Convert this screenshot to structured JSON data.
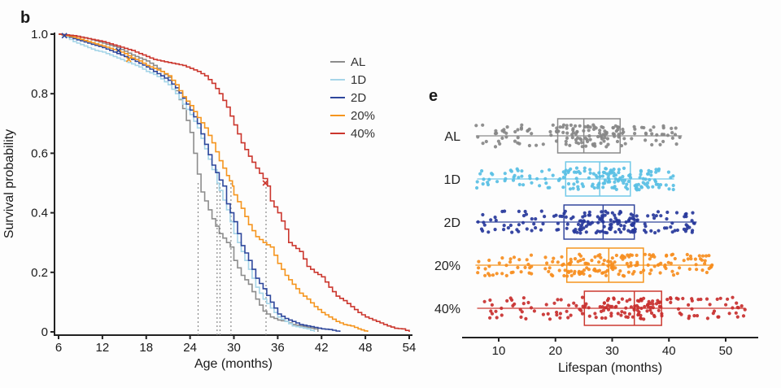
{
  "figure": {
    "background": "#fdfdfd",
    "axis_color": "#222222",
    "median_dash_color": "#8a8a8a"
  },
  "chart_data": [
    {
      "id": "survival-curves",
      "type": "line",
      "step": true,
      "panel_label": "b",
      "xlabel": "Age (months)",
      "ylabel": "Survival probability",
      "xlim": [
        6,
        54
      ],
      "xticks": [
        6,
        12,
        18,
        24,
        30,
        36,
        42,
        48,
        54
      ],
      "ylim": [
        0,
        1
      ],
      "yticks": [
        {
          "v": 1.0,
          "label": "1.0"
        },
        {
          "v": 0.8,
          "label": "0.8"
        },
        {
          "v": 0.6,
          "label": "0.6"
        },
        {
          "v": 0.4,
          "label": "0.4"
        },
        {
          "v": 0.2,
          "label": "0.2"
        },
        {
          "v": 0.0,
          "label": "0"
        }
      ],
      "grid": false,
      "legend_position": "upper-right-inside",
      "legend": [
        "AL",
        "1D",
        "2D",
        "20%",
        "40%"
      ],
      "median_survival_months": {
        "AL": 25.1,
        "1D": 27.7,
        "2D": 28.1,
        "20%": 29.6,
        "40%": 34.4
      },
      "censor_marks": [
        {
          "series": "2D",
          "age": 6.8,
          "p": 1.0
        },
        {
          "series": "2D",
          "age": 14.2,
          "p": 0.945
        },
        {
          "series": "20%",
          "age": 15.6,
          "p": 0.915
        },
        {
          "series": "40%",
          "age": 34.3,
          "p": 0.5
        }
      ],
      "series": [
        {
          "name": "AL",
          "color": "#8c8c8c",
          "points": [
            [
              6,
              1.0
            ],
            [
              8,
              0.995
            ],
            [
              10,
              0.985
            ],
            [
              12,
              0.97
            ],
            [
              14,
              0.955
            ],
            [
              16,
              0.93
            ],
            [
              17,
              0.92
            ],
            [
              18,
              0.91
            ],
            [
              19,
              0.895
            ],
            [
              20,
              0.875
            ],
            [
              21,
              0.855
            ],
            [
              22,
              0.81
            ],
            [
              23,
              0.75
            ],
            [
              24,
              0.67
            ],
            [
              25,
              0.53
            ],
            [
              25.5,
              0.47
            ],
            [
              26,
              0.44
            ],
            [
              27,
              0.38
            ],
            [
              28,
              0.33
            ],
            [
              29,
              0.3
            ],
            [
              29.5,
              0.285
            ],
            [
              30,
              0.24
            ],
            [
              31,
              0.19
            ],
            [
              32,
              0.16
            ],
            [
              33,
              0.11
            ],
            [
              34,
              0.07
            ],
            [
              35,
              0.05
            ],
            [
              36,
              0.04
            ],
            [
              37,
              0.035
            ],
            [
              38,
              0.025
            ],
            [
              39,
              0.02
            ],
            [
              40,
              0.015
            ],
            [
              41,
              0.01
            ],
            [
              41.5,
              0
            ]
          ]
        },
        {
          "name": "1D",
          "color": "#a6d5e8",
          "points": [
            [
              6,
              1.0
            ],
            [
              7,
              0.99
            ],
            [
              8,
              0.975
            ],
            [
              9,
              0.965
            ],
            [
              10,
              0.955
            ],
            [
              11,
              0.945
            ],
            [
              12,
              0.94
            ],
            [
              13,
              0.93
            ],
            [
              14,
              0.92
            ],
            [
              15,
              0.91
            ],
            [
              16,
              0.9
            ],
            [
              17,
              0.89
            ],
            [
              18,
              0.875
            ],
            [
              19,
              0.865
            ],
            [
              20,
              0.85
            ],
            [
              21,
              0.83
            ],
            [
              22,
              0.8
            ],
            [
              23,
              0.765
            ],
            [
              24,
              0.73
            ],
            [
              25,
              0.685
            ],
            [
              26,
              0.615
            ],
            [
              27,
              0.545
            ],
            [
              27.7,
              0.5
            ],
            [
              28,
              0.475
            ],
            [
              29,
              0.41
            ],
            [
              30,
              0.33
            ],
            [
              31,
              0.27
            ],
            [
              32,
              0.21
            ],
            [
              33,
              0.15
            ],
            [
              34,
              0.11
            ],
            [
              35,
              0.08
            ],
            [
              36,
              0.05
            ],
            [
              37,
              0.035
            ],
            [
              38,
              0.02
            ],
            [
              39,
              0.015
            ],
            [
              40,
              0.01
            ],
            [
              41,
              0
            ]
          ]
        },
        {
          "name": "2D",
          "color": "#2e479c",
          "points": [
            [
              6,
              1.0
            ],
            [
              7,
              0.995
            ],
            [
              8,
              0.985
            ],
            [
              10,
              0.97
            ],
            [
              12,
              0.955
            ],
            [
              14,
              0.935
            ],
            [
              16,
              0.915
            ],
            [
              18,
              0.89
            ],
            [
              20,
              0.86
            ],
            [
              21,
              0.845
            ],
            [
              22,
              0.82
            ],
            [
              23,
              0.785
            ],
            [
              24,
              0.745
            ],
            [
              25,
              0.7
            ],
            [
              26,
              0.63
            ],
            [
              27,
              0.56
            ],
            [
              28,
              0.51
            ],
            [
              28.5,
              0.49
            ],
            [
              29,
              0.43
            ],
            [
              30,
              0.37
            ],
            [
              31,
              0.29
            ],
            [
              32,
              0.24
            ],
            [
              33,
              0.18
            ],
            [
              34,
              0.145
            ],
            [
              35,
              0.1
            ],
            [
              36,
              0.06
            ],
            [
              37,
              0.045
            ],
            [
              38,
              0.035
            ],
            [
              39,
              0.025
            ],
            [
              40,
              0.02
            ],
            [
              41,
              0.015
            ],
            [
              42,
              0.01
            ],
            [
              43,
              0.008
            ],
            [
              44.5,
              0
            ]
          ]
        },
        {
          "name": "20%",
          "color": "#f5951e",
          "points": [
            [
              6,
              1.0
            ],
            [
              8,
              0.99
            ],
            [
              10,
              0.975
            ],
            [
              12,
              0.96
            ],
            [
              14,
              0.945
            ],
            [
              15,
              0.935
            ],
            [
              16,
              0.92
            ],
            [
              17,
              0.91
            ],
            [
              18,
              0.895
            ],
            [
              19,
              0.885
            ],
            [
              20,
              0.875
            ],
            [
              21,
              0.86
            ],
            [
              22,
              0.83
            ],
            [
              23,
              0.79
            ],
            [
              24,
              0.76
            ],
            [
              25,
              0.72
            ],
            [
              26,
              0.685
            ],
            [
              27,
              0.635
            ],
            [
              28,
              0.575
            ],
            [
              29,
              0.525
            ],
            [
              29.8,
              0.49
            ],
            [
              30,
              0.46
            ],
            [
              31,
              0.415
            ],
            [
              32,
              0.36
            ],
            [
              33,
              0.32
            ],
            [
              34,
              0.3
            ],
            [
              35,
              0.285
            ],
            [
              36,
              0.23
            ],
            [
              37,
              0.19
            ],
            [
              38,
              0.16
            ],
            [
              39,
              0.13
            ],
            [
              40,
              0.11
            ],
            [
              41,
              0.085
            ],
            [
              42,
              0.065
            ],
            [
              43,
              0.05
            ],
            [
              44,
              0.035
            ],
            [
              45,
              0.025
            ],
            [
              46,
              0.02
            ],
            [
              47,
              0.01
            ],
            [
              48.3,
              0
            ]
          ]
        },
        {
          "name": "40%",
          "color": "#cb362d",
          "points": [
            [
              6,
              1.0
            ],
            [
              8,
              0.995
            ],
            [
              10,
              0.985
            ],
            [
              12,
              0.975
            ],
            [
              14,
              0.96
            ],
            [
              16,
              0.945
            ],
            [
              17,
              0.935
            ],
            [
              18,
              0.925
            ],
            [
              19,
              0.915
            ],
            [
              20,
              0.91
            ],
            [
              21,
              0.905
            ],
            [
              22,
              0.9
            ],
            [
              23,
              0.895
            ],
            [
              24,
              0.885
            ],
            [
              25,
              0.875
            ],
            [
              26,
              0.86
            ],
            [
              27,
              0.835
            ],
            [
              28,
              0.8
            ],
            [
              29,
              0.755
            ],
            [
              30,
              0.695
            ],
            [
              31,
              0.635
            ],
            [
              32,
              0.59
            ],
            [
              33,
              0.55
            ],
            [
              34,
              0.515
            ],
            [
              34.6,
              0.49
            ],
            [
              35,
              0.44
            ],
            [
              36,
              0.4
            ],
            [
              37,
              0.345
            ],
            [
              37.5,
              0.3
            ],
            [
              38,
              0.29
            ],
            [
              39,
              0.27
            ],
            [
              40,
              0.22
            ],
            [
              41,
              0.2
            ],
            [
              42,
              0.185
            ],
            [
              43,
              0.15
            ],
            [
              44,
              0.12
            ],
            [
              45,
              0.105
            ],
            [
              46,
              0.085
            ],
            [
              47,
              0.065
            ],
            [
              48,
              0.05
            ],
            [
              49,
              0.04
            ],
            [
              50,
              0.03
            ],
            [
              51,
              0.02
            ],
            [
              52,
              0.012
            ],
            [
              53,
              0.01
            ],
            [
              54,
              0
            ]
          ]
        }
      ]
    },
    {
      "id": "lifespan-boxplots",
      "type": "boxplot-jitter",
      "panel_label": "e",
      "xlabel": "Lifespan (months)",
      "xlim": [
        4,
        56
      ],
      "xticks": [
        10,
        20,
        30,
        40,
        50
      ],
      "groups": [
        {
          "name": "AL",
          "line_color": "#8a8a8a",
          "dot_color": "#878787",
          "min": 6.0,
          "q1": 20.4,
          "median": 25.0,
          "q3": 31.4,
          "max": 42.3,
          "n_dots": 160,
          "seed": 11
        },
        {
          "name": "1D",
          "line_color": "#72c9e8",
          "dot_color": "#58bfe4",
          "min": 6.2,
          "q1": 21.8,
          "median": 27.8,
          "q3": 33.2,
          "max": 40.9,
          "n_dots": 170,
          "seed": 22
        },
        {
          "name": "2D",
          "line_color": "#33479d",
          "dot_color": "#27389b",
          "min": 6.0,
          "q1": 21.5,
          "median": 28.4,
          "q3": 33.9,
          "max": 44.9,
          "n_dots": 185,
          "seed": 33
        },
        {
          "name": "20%",
          "line_color": "#f5951e",
          "dot_color": "#f68d1e",
          "min": 5.9,
          "q1": 22.0,
          "median": 29.4,
          "q3": 35.5,
          "max": 47.8,
          "n_dots": 190,
          "seed": 44
        },
        {
          "name": "40%",
          "line_color": "#cc3a31",
          "dot_color": "#c82f2e",
          "min": 6.2,
          "q1": 25.1,
          "median": 33.9,
          "q3": 38.7,
          "max": 53.5,
          "n_dots": 175,
          "seed": 55
        }
      ]
    }
  ]
}
